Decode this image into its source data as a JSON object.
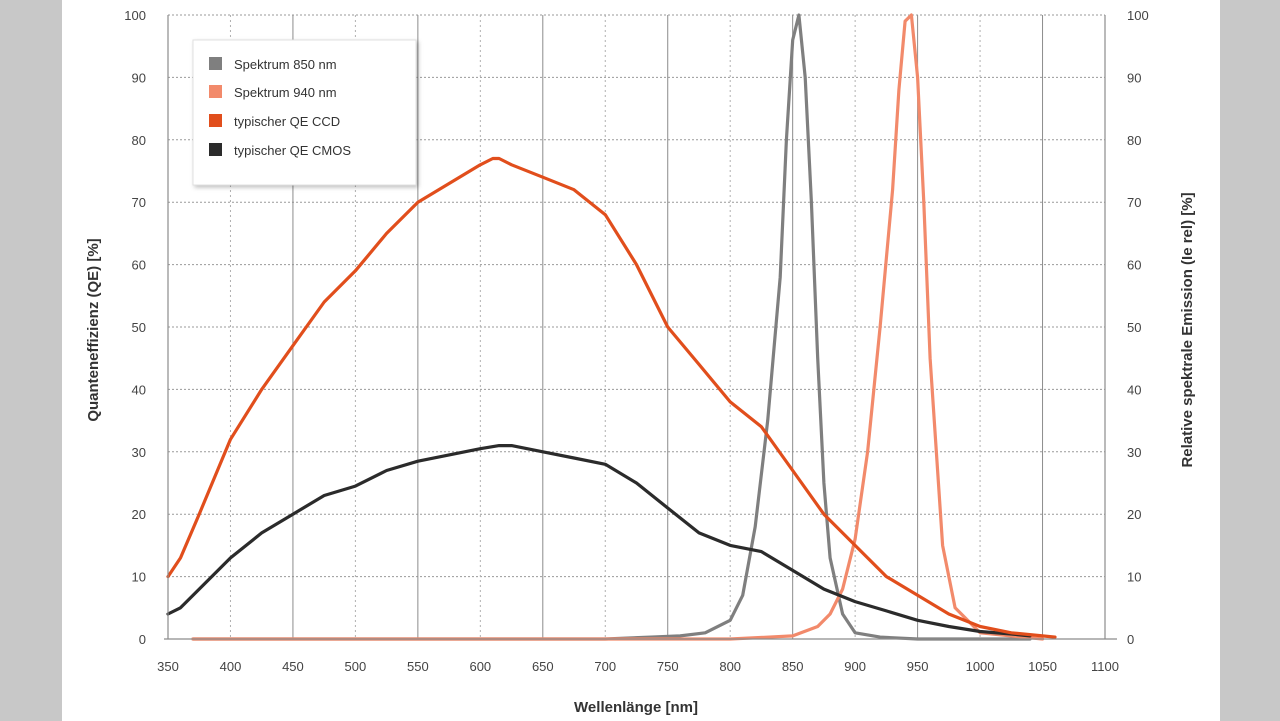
{
  "chart_data": {
    "type": "line",
    "title": "",
    "xlabel": "Wellenlänge [nm]",
    "ylabel": "Quanteneffizienz (QE) [%]",
    "ylabel_right": "Relative spektrale Emission (Ie rel) [%]",
    "xlim": [
      350,
      1100
    ],
    "ylim": [
      0,
      100
    ],
    "xticks": [
      350,
      400,
      450,
      500,
      550,
      600,
      650,
      700,
      750,
      800,
      850,
      900,
      950,
      1000,
      1050,
      1100
    ],
    "yticks": [
      0,
      10,
      20,
      30,
      40,
      50,
      60,
      70,
      80,
      90,
      100
    ],
    "grid": {
      "vertical_solid": [
        450,
        550,
        650,
        750,
        850,
        950,
        1050
      ],
      "vertical_dashed": [
        400,
        500,
        600,
        700,
        800,
        900,
        1000
      ],
      "horizontal_dotted": true
    },
    "legend_position": "top-left",
    "series": [
      {
        "name": "Spektrum 850 nm",
        "color": "#7f7f7f",
        "axis": "right",
        "x": [
          370,
          700,
          760,
          780,
          800,
          810,
          820,
          830,
          840,
          845,
          850,
          855,
          860,
          865,
          870,
          875,
          880,
          890,
          900,
          920,
          950,
          1000,
          1040
        ],
        "y": [
          0,
          0,
          0.5,
          1,
          3,
          7,
          18,
          35,
          58,
          80,
          96,
          100,
          90,
          70,
          45,
          25,
          13,
          4,
          1,
          0.3,
          0,
          0,
          0
        ]
      },
      {
        "name": "Spektrum 940 nm",
        "color": "#f28a6b",
        "axis": "right",
        "x": [
          370,
          800,
          850,
          870,
          880,
          890,
          900,
          910,
          920,
          930,
          935,
          940,
          945,
          950,
          955,
          960,
          970,
          980,
          1000,
          1050
        ],
        "y": [
          0,
          0,
          0.5,
          2,
          4,
          8,
          16,
          30,
          50,
          72,
          88,
          99,
          100,
          90,
          70,
          45,
          15,
          5,
          1,
          0
        ]
      },
      {
        "name": "typischer QE CCD",
        "color": "#e14e1c",
        "axis": "left",
        "x": [
          350,
          360,
          375,
          400,
          425,
          450,
          475,
          500,
          525,
          550,
          575,
          600,
          610,
          615,
          625,
          650,
          675,
          700,
          725,
          750,
          775,
          800,
          825,
          850,
          875,
          900,
          925,
          950,
          975,
          1000,
          1025,
          1050,
          1060
        ],
        "y": [
          10,
          13,
          20,
          32,
          40,
          47,
          54,
          59,
          65,
          70,
          73,
          76,
          77,
          77,
          76,
          74,
          72,
          68,
          60,
          50,
          44,
          38,
          34,
          27,
          20,
          15,
          10,
          7,
          4,
          2,
          1,
          0.5,
          0.3
        ]
      },
      {
        "name": "typischer QE CMOS",
        "color": "#2b2b2b",
        "axis": "left",
        "x": [
          350,
          360,
          375,
          400,
          425,
          450,
          475,
          500,
          525,
          550,
          575,
          600,
          615,
          625,
          650,
          675,
          700,
          725,
          750,
          775,
          800,
          825,
          850,
          875,
          900,
          925,
          950,
          975,
          1000,
          1025,
          1040
        ],
        "y": [
          4,
          5,
          8,
          13,
          17,
          20,
          23,
          24.5,
          27,
          28.5,
          29.5,
          30.5,
          31,
          31,
          30,
          29,
          28,
          25,
          21,
          17,
          15,
          14,
          11,
          8,
          6,
          4.5,
          3,
          2,
          1.2,
          0.8,
          0.5
        ]
      }
    ]
  }
}
